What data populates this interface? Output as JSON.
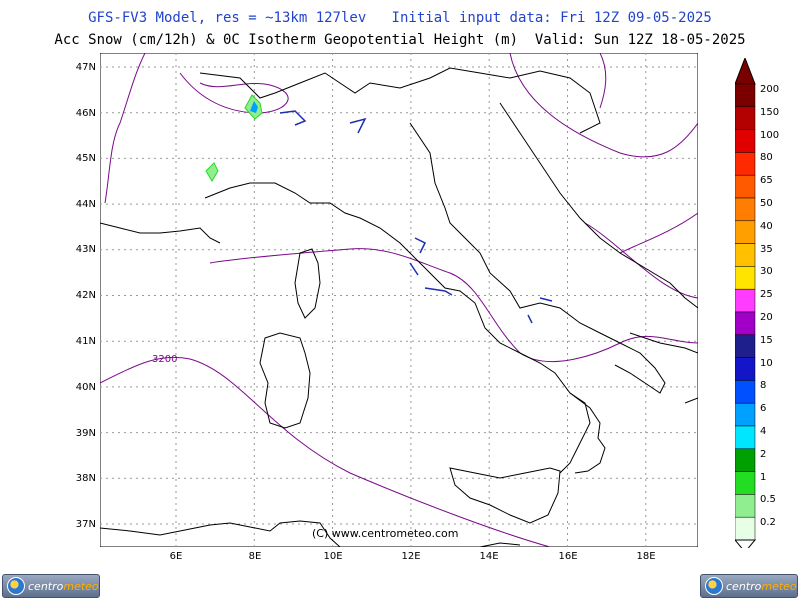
{
  "header": {
    "line1": "GFS-FV3 Model, res = ~13km 127lev   Initial input data: Fri 12Z 09-05-2025",
    "line2": "Acc Snow (cm/12h) & 0C Isotherm Geopotential Height (m)  Valid: Sun 12Z 18-05-2025"
  },
  "map": {
    "lat_labels": [
      "47N",
      "46N",
      "45N",
      "44N",
      "43N",
      "42N",
      "41N",
      "40N",
      "39N",
      "38N",
      "37N"
    ],
    "lon_labels": [
      "6E",
      "8E",
      "10E",
      "12E",
      "14E",
      "16E",
      "18E"
    ],
    "contour_label": "3200",
    "copyright": "(C) www.centrometeo.com",
    "colors": {
      "coast": "#000000",
      "isotherm": "#7a0a8a",
      "grid": "#999999",
      "snow_blue": "#1d2fb0"
    }
  },
  "legend": {
    "labels": [
      "200",
      "150",
      "100",
      "80",
      "65",
      "50",
      "40",
      "35",
      "30",
      "25",
      "20",
      "15",
      "10",
      "8",
      "6",
      "4",
      "2",
      "1",
      "0.5",
      "0.2"
    ],
    "colors": [
      "#7a0000",
      "#b30000",
      "#e00000",
      "#ff2a00",
      "#ff5a00",
      "#ff7d00",
      "#ffa000",
      "#ffc000",
      "#ffe400",
      "#ff3cff",
      "#a000c8",
      "#1e1e8c",
      "#1414c8",
      "#0050ff",
      "#00a0ff",
      "#00e6ff",
      "#00a000",
      "#22dd22",
      "#90ee90",
      "#e6ffe6"
    ]
  },
  "logos": {
    "part1": "centro",
    "part2": "meteo"
  }
}
